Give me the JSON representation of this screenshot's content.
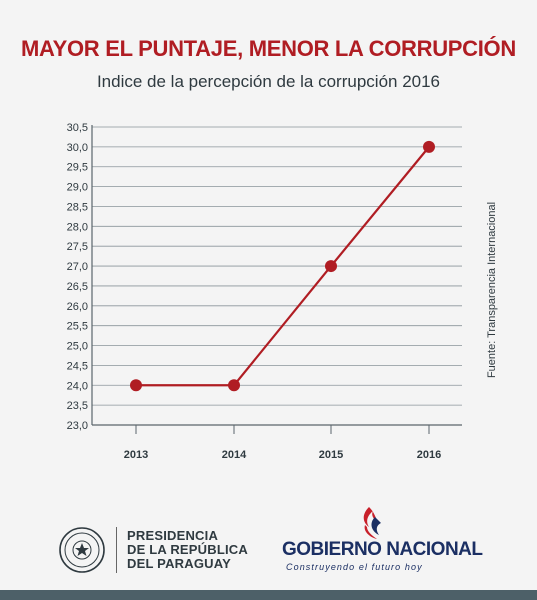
{
  "header": {
    "title": "MAYOR EL PUNTAJE, MENOR LA CORRUPCIÓN",
    "subtitle": "Indice de la percepción de la corrupción 2016"
  },
  "source_note": "Fuente: Transparencia Internacional",
  "footer": {
    "presidencia": [
      "PRESIDENCIA",
      "DE LA REPÚBLICA",
      "DEL PARAGUAY"
    ],
    "gobierno_part1": "GOBIERNO",
    "gobierno_part2": "NACIONAL",
    "tagline": "Construyendo el futuro hoy"
  },
  "colors": {
    "accent": "#b01d23",
    "line": "#b01d23",
    "text": "#2f3a40",
    "navy": "#1b2f63",
    "bar": "#4d6068"
  },
  "chart_data": {
    "type": "line",
    "title": "MAYOR EL PUNTAJE, MENOR LA CORRUPCIÓN",
    "subtitle": "Indice de la percepción de la corrupción 2016",
    "categories": [
      "2013",
      "2014",
      "2015",
      "2016"
    ],
    "series": [
      {
        "values": [
          24.0,
          24.0,
          27.0,
          30.0
        ]
      }
    ],
    "ylim": [
      23.0,
      30.5
    ],
    "yticks": [
      "23,0",
      "23,5",
      "24,0",
      "24,5",
      "25,0",
      "25,5",
      "26,0",
      "26,5",
      "27,0",
      "27,5",
      "28,0",
      "28,5",
      "29,0",
      "29,5",
      "30,0",
      "30,5"
    ],
    "grid": true,
    "xlabel": "",
    "ylabel": ""
  }
}
